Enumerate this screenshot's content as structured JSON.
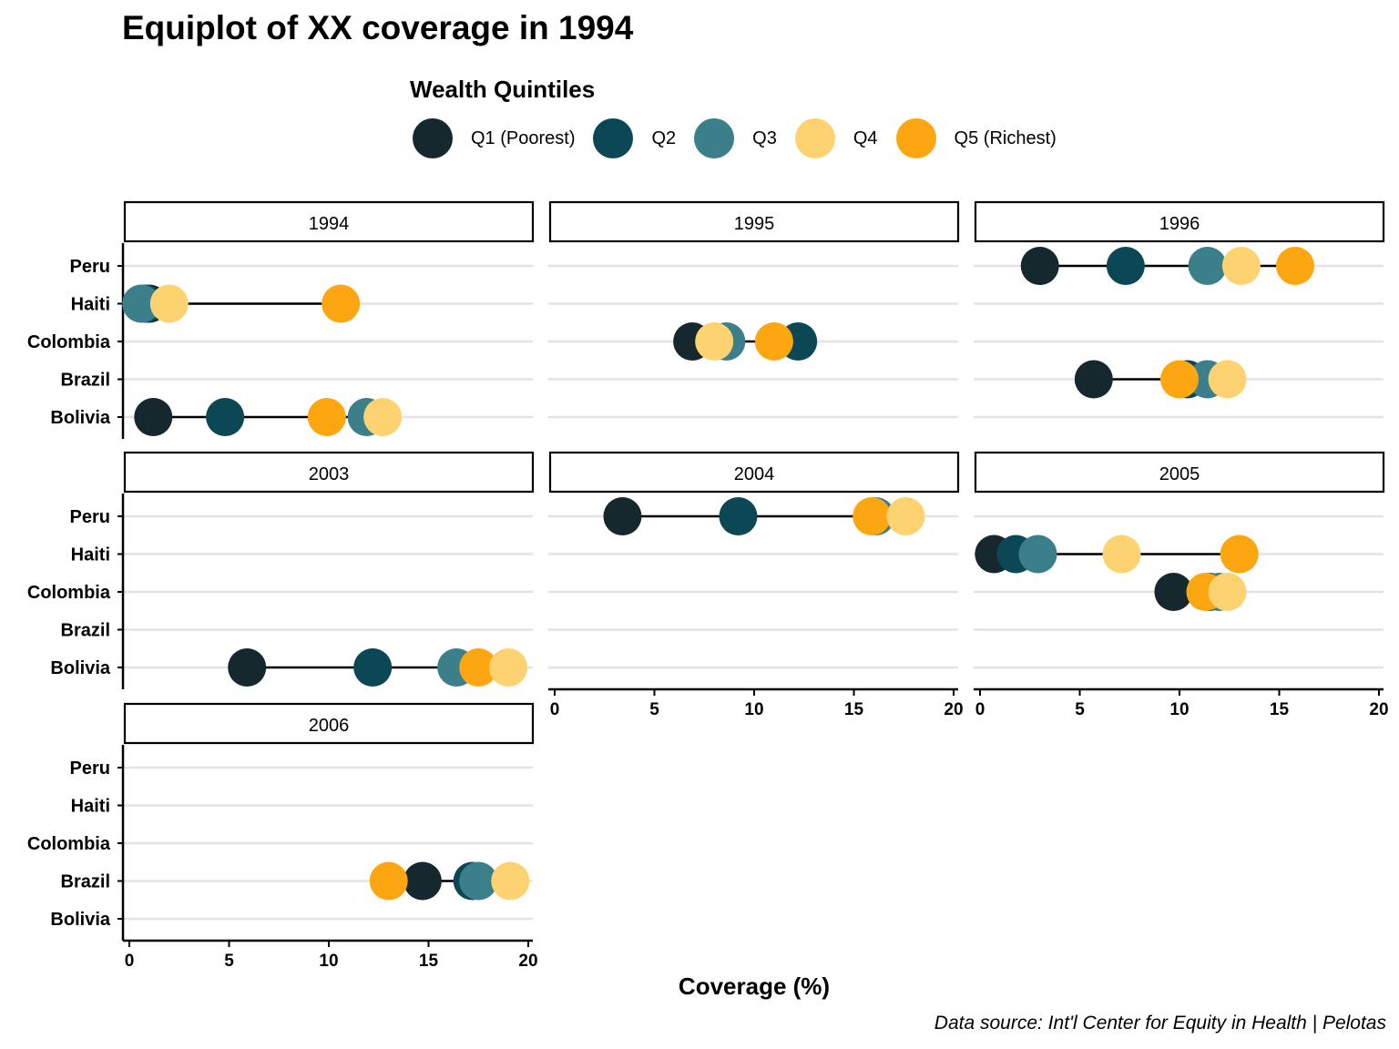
{
  "title": "Equiplot of XX coverage in 1994",
  "caption": "Data source: Int'l Center for Equity in Health | Pelotas",
  "legend": {
    "title": "Wealth Quintiles",
    "items": [
      {
        "key": "Q1",
        "label": "Q1 (Poorest)",
        "color": "#14282e"
      },
      {
        "key": "Q2",
        "label": "Q2",
        "color": "#0c4755"
      },
      {
        "key": "Q3",
        "label": "Q3",
        "color": "#3b7f8a"
      },
      {
        "key": "Q4",
        "label": "Q4",
        "color": "#fdd371"
      },
      {
        "key": "Q5",
        "label": "Q5 (Richest)",
        "color": "#fca711"
      }
    ]
  },
  "chart_data": {
    "type": "scatter",
    "subtype": "equiplot-facets",
    "title": "Equiplot of XX coverage in 1994",
    "xlabel": "Coverage (%)",
    "ylabel": "",
    "xlim": [
      0,
      20
    ],
    "xticks": [
      0,
      5,
      10,
      15,
      20
    ],
    "countries": [
      "Peru",
      "Haiti",
      "Colombia",
      "Brazil",
      "Bolivia"
    ],
    "grid": "horizontal",
    "legend_position": "top",
    "series_order": [
      "Q1",
      "Q2",
      "Q3",
      "Q4",
      "Q5"
    ],
    "draw_order": [
      "Q1",
      "Q2",
      "Q3",
      "Q5",
      "Q4"
    ],
    "facets": [
      {
        "year": "1994",
        "rows": [
          {
            "country": "Haiti",
            "values": {
              "Q1": 1.0,
              "Q2": 0.8,
              "Q3": 0.6,
              "Q4": 2.0,
              "Q5": 10.6
            }
          },
          {
            "country": "Bolivia",
            "values": {
              "Q1": 1.2,
              "Q2": 4.8,
              "Q3": 11.9,
              "Q4": 12.7,
              "Q5": 9.9
            }
          }
        ]
      },
      {
        "year": "1995",
        "rows": [
          {
            "country": "Colombia",
            "values": {
              "Q1": 6.9,
              "Q2": 12.2,
              "Q3": 8.6,
              "Q4": 8.0,
              "Q5": 11.0
            }
          }
        ]
      },
      {
        "year": "1996",
        "rows": [
          {
            "country": "Peru",
            "values": {
              "Q1": 3.0,
              "Q2": 7.3,
              "Q3": 11.4,
              "Q4": 13.1,
              "Q5": 15.8
            }
          },
          {
            "country": "Brazil",
            "values": {
              "Q1": 5.7,
              "Q2": 10.4,
              "Q3": 11.4,
              "Q4": 12.4,
              "Q5": 10.0
            }
          }
        ]
      },
      {
        "year": "2003",
        "rows": [
          {
            "country": "Bolivia",
            "values": {
              "Q1": 5.9,
              "Q2": 12.2,
              "Q3": 16.4,
              "Q4": 19.0,
              "Q5": 17.5
            }
          }
        ]
      },
      {
        "year": "2004",
        "rows": [
          {
            "country": "Peru",
            "values": {
              "Q1": 3.4,
              "Q2": 9.2,
              "Q3": 16.1,
              "Q4": 17.6,
              "Q5": 15.9
            }
          }
        ]
      },
      {
        "year": "2005",
        "rows": [
          {
            "country": "Haiti",
            "values": {
              "Q1": 0.7,
              "Q2": 1.8,
              "Q3": 2.9,
              "Q4": 7.1,
              "Q5": 13.0
            }
          },
          {
            "country": "Colombia",
            "values": {
              "Q1": 9.7,
              "Q2": 11.5,
              "Q3": 12.0,
              "Q4": 12.4,
              "Q5": 11.3
            }
          }
        ]
      },
      {
        "year": "2006",
        "rows": [
          {
            "country": "Brazil",
            "values": {
              "Q1": 14.7,
              "Q2": 17.2,
              "Q3": 17.5,
              "Q4": 19.1,
              "Q5": 13.0
            }
          }
        ]
      }
    ]
  }
}
